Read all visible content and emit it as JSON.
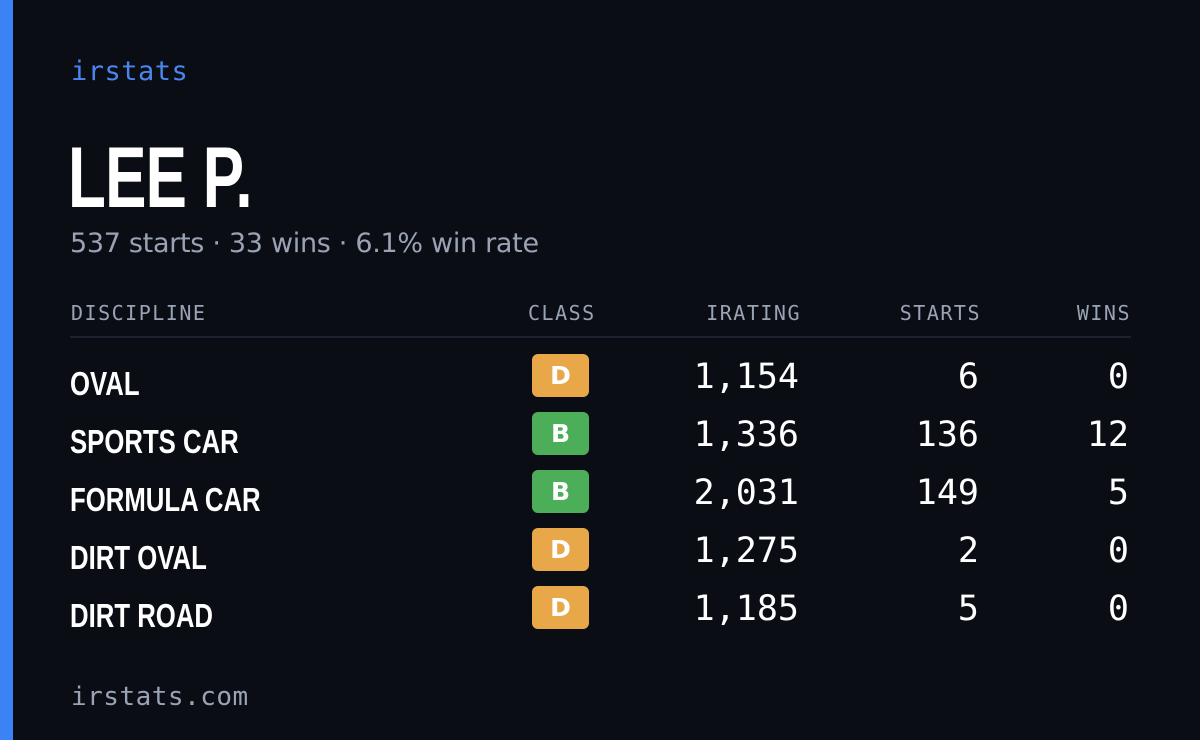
{
  "brand": "irstats",
  "player": {
    "name": "LEE P.",
    "summary": "537 starts · 33 wins · 6.1% win rate"
  },
  "table": {
    "headers": {
      "discipline": "DISCIPLINE",
      "class": "CLASS",
      "irating": "IRATING",
      "starts": "STARTS",
      "wins": "WINS"
    },
    "rows": [
      {
        "discipline": "OVAL",
        "class": "D",
        "class_color": "#e8a84a",
        "irating": "1,154",
        "starts": "6",
        "wins": "0"
      },
      {
        "discipline": "SPORTS CAR",
        "class": "B",
        "class_color": "#4cae58",
        "irating": "1,336",
        "starts": "136",
        "wins": "12"
      },
      {
        "discipline": "FORMULA CAR",
        "class": "B",
        "class_color": "#4cae58",
        "irating": "2,031",
        "starts": "149",
        "wins": "5"
      },
      {
        "discipline": "DIRT OVAL",
        "class": "D",
        "class_color": "#e8a84a",
        "irating": "1,275",
        "starts": "2",
        "wins": "0"
      },
      {
        "discipline": "DIRT ROAD",
        "class": "D",
        "class_color": "#e8a84a",
        "irating": "1,185",
        "starts": "5",
        "wins": "0"
      }
    ]
  },
  "footer": "irstats.com",
  "colors": {
    "accent": "#3b82f6",
    "background": "#0b0d14",
    "muted_text": "#9aa3b5"
  }
}
